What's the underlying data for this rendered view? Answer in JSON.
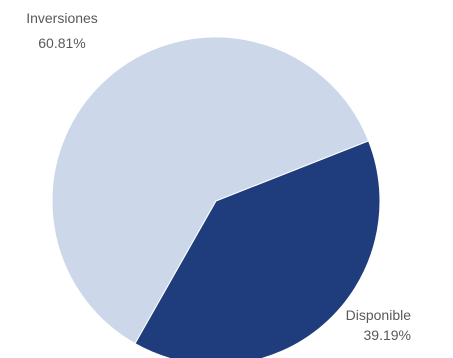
{
  "chart_data": {
    "type": "pie",
    "slices": [
      {
        "label": "Inversiones",
        "percent_label": "60.81%",
        "value": 60.81,
        "color": "#ccd7ea"
      },
      {
        "label": "Disponible",
        "percent_label": "39.19%",
        "value": 39.19,
        "color": "#1f3d7d"
      }
    ]
  }
}
